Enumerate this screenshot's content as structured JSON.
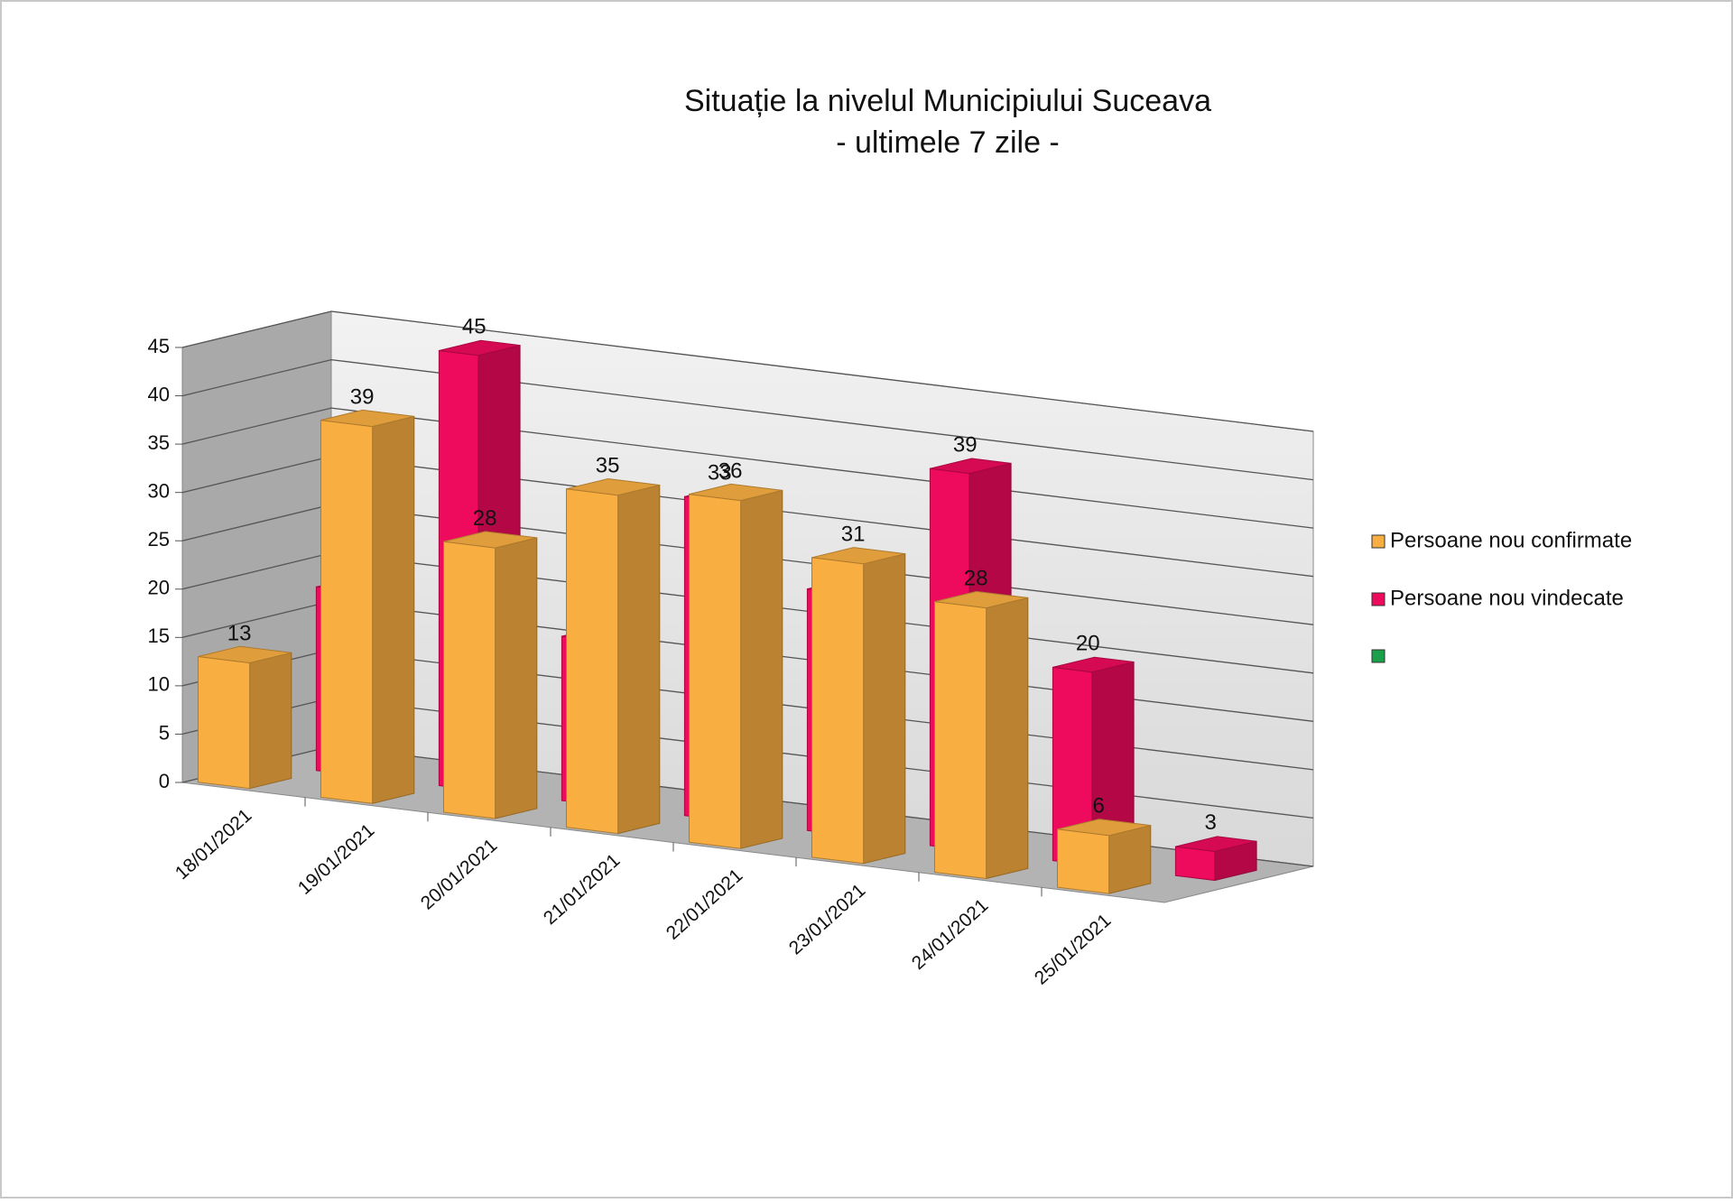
{
  "chart_data": {
    "type": "bar3d",
    "title": "Situație la nivelul Municipiului Suceava",
    "subtitle": "- ultimele 7 zile -",
    "categories": [
      "18/01/2021",
      "19/01/2021",
      "20/01/2021",
      "21/01/2021",
      "22/01/2021",
      "23/01/2021",
      "24/01/2021",
      "25/01/2021"
    ],
    "series": [
      {
        "name": "Persoane nou confirmate",
        "color": "#f9ae41",
        "values": [
          13,
          39,
          28,
          35,
          36,
          31,
          28,
          6
        ]
      },
      {
        "name": "Persoane nou vindecate",
        "color": "#ee0a5c",
        "values": [
          19,
          45,
          17,
          33,
          25,
          39,
          20,
          3
        ]
      }
    ],
    "ylim": [
      0,
      45
    ],
    "yticks": [
      0,
      5,
      10,
      15,
      20,
      25,
      30,
      35,
      40,
      45
    ],
    "grid": true,
    "legend": "right"
  }
}
